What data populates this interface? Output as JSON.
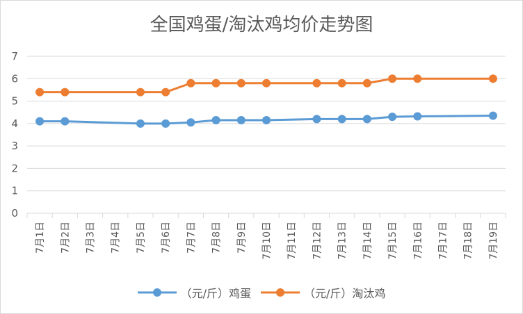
{
  "chart_data": {
    "type": "line",
    "title": "全国鸡蛋/淘汰鸡均价走势图",
    "categories": [
      "7月1日",
      "7月2日",
      "7月3日",
      "7月4日",
      "7月5日",
      "7月6日",
      "7月7日",
      "7月8日",
      "7月9日",
      "7月10日",
      "7月11日",
      "7月12日",
      "7月13日",
      "7月14日",
      "7月15日",
      "7月16日",
      "7月17日",
      "7月18日",
      "7月19日"
    ],
    "series": [
      {
        "name": "（元/斤）鸡蛋",
        "color": "#5b9bd5",
        "values": [
          4.1,
          4.1,
          null,
          null,
          4.0,
          4.0,
          4.05,
          4.15,
          4.15,
          4.15,
          null,
          4.2,
          4.2,
          4.2,
          4.3,
          4.32,
          null,
          null,
          4.35
        ]
      },
      {
        "name": "（元/斤）淘汰鸡",
        "color": "#ed7d31",
        "values": [
          5.4,
          5.4,
          null,
          null,
          5.4,
          5.4,
          5.8,
          5.8,
          5.8,
          5.8,
          null,
          5.8,
          5.8,
          5.8,
          6.0,
          6.0,
          null,
          null,
          6.0
        ]
      }
    ],
    "ylim": [
      0,
      7
    ],
    "yticks": [
      0,
      1,
      2,
      3,
      4,
      5,
      6,
      7
    ],
    "grid": true,
    "legend": "bottom"
  }
}
